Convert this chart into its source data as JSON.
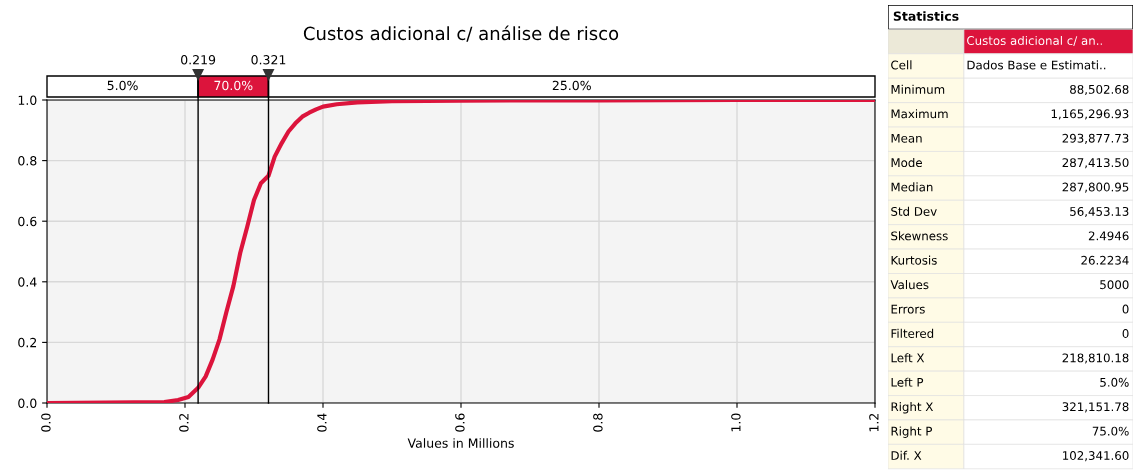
{
  "chart_data": [
    {
      "type": "line",
      "title": "Custos adicional c/ análise de risco",
      "xlabel": "Values in Millions",
      "x": [
        0.0,
        0.17,
        0.19,
        0.205,
        0.219,
        0.23,
        0.24,
        0.25,
        0.26,
        0.27,
        0.28,
        0.29,
        0.3,
        0.31,
        0.321,
        0.33,
        0.34,
        0.35,
        0.36,
        0.37,
        0.38,
        0.39,
        0.4,
        0.42,
        0.45,
        0.5,
        0.6,
        0.8,
        1.0,
        1.2
      ],
      "series": [
        {
          "color": "#dc143c",
          "values": [
            0.0,
            0.003,
            0.01,
            0.02,
            0.05,
            0.088,
            0.143,
            0.21,
            0.3,
            0.385,
            0.495,
            0.58,
            0.67,
            0.725,
            0.75,
            0.813,
            0.857,
            0.896,
            0.923,
            0.945,
            0.958,
            0.969,
            0.978,
            0.986,
            0.992,
            0.996,
            0.998,
            0.999,
            1.0,
            1.0
          ]
        }
      ],
      "xlim": [
        0,
        1.2
      ],
      "xticks": [
        {
          "value": 0,
          "label": "0.0"
        },
        0.2,
        0.4,
        0.6,
        0.8,
        {
          "value": 1,
          "label": "1.0"
        },
        1.2
      ],
      "ylim": [
        0,
        1.0
      ],
      "yticks": [
        {
          "value": 0,
          "label": "0.0"
        },
        0.2,
        0.4,
        0.6,
        0.8,
        {
          "value": 1,
          "label": "1.0"
        }
      ],
      "grid": true,
      "marker": "none",
      "line_style": "solid",
      "ref_lines": [
        {
          "axis": "x",
          "value": 0.219,
          "label": "0.219",
          "color": "#000000"
        },
        {
          "axis": "x",
          "value": 0.321,
          "label": "0.321",
          "color": "#000000"
        }
      ],
      "annotations": [
        "5.0%",
        "70.0%",
        "25.0%"
      ]
    },
    {
      "type": "other",
      "title": "Statistics",
      "subtitle": "Custos adicional c/ an..",
      "annotations": [
        "Cell",
        "Dados Base e Estimati..",
        "Minimum",
        "88,502.68",
        "Maximum",
        "1,165,296.93",
        "Mean",
        "293,877.73",
        "Mode",
        "287,413.50",
        "Median",
        "287,800.95",
        "Std Dev",
        "56,453.13",
        "Skewness",
        "2.4946",
        "Kurtosis",
        "26.2234",
        "Values",
        "5000",
        "Errors",
        "0",
        "Filtered",
        "0",
        "Left X",
        "218,810.18",
        "Left P",
        "5.0%",
        "Right X",
        "321,151.78",
        "Right P",
        "75.0%",
        "Dif. X",
        "102,341.60"
      ]
    }
  ]
}
